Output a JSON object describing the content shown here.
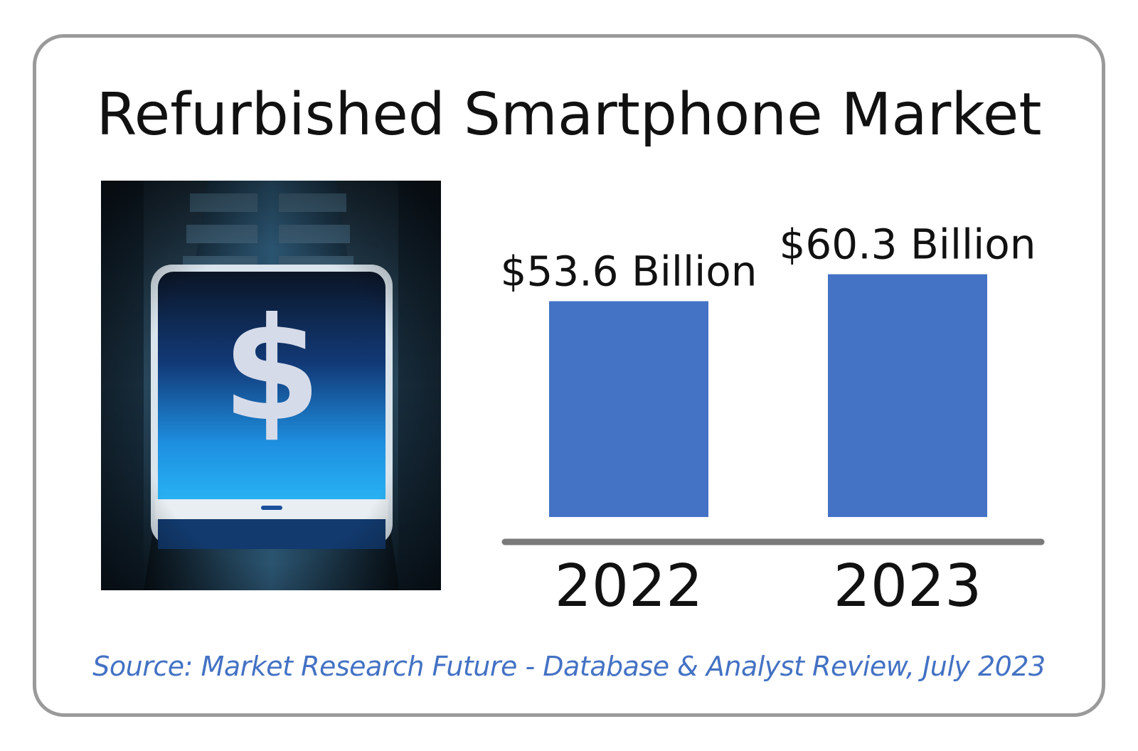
{
  "title": "Refurbished Smartphone Market",
  "source": "Source: Market Research Future - Database & Analyst Review, July 2023",
  "photo": {
    "icon": "dollar-phone-icon",
    "symbol": "$"
  },
  "colors": {
    "bar": "#4472c4",
    "axis": "#7a7a7a",
    "source": "#4472c4",
    "border": "#9a9a9a"
  },
  "chart_data": {
    "type": "bar",
    "title": "Refurbished Smartphone Market",
    "categories": [
      "2022",
      "2023"
    ],
    "values": [
      53.6,
      60.3
    ],
    "value_labels": [
      "$53.6 Billion",
      "$60.3 Billion"
    ],
    "unit": "Billion USD",
    "xlabel": "",
    "ylabel": "",
    "ylim": [
      0,
      68
    ],
    "grid": false,
    "legend": "none"
  }
}
